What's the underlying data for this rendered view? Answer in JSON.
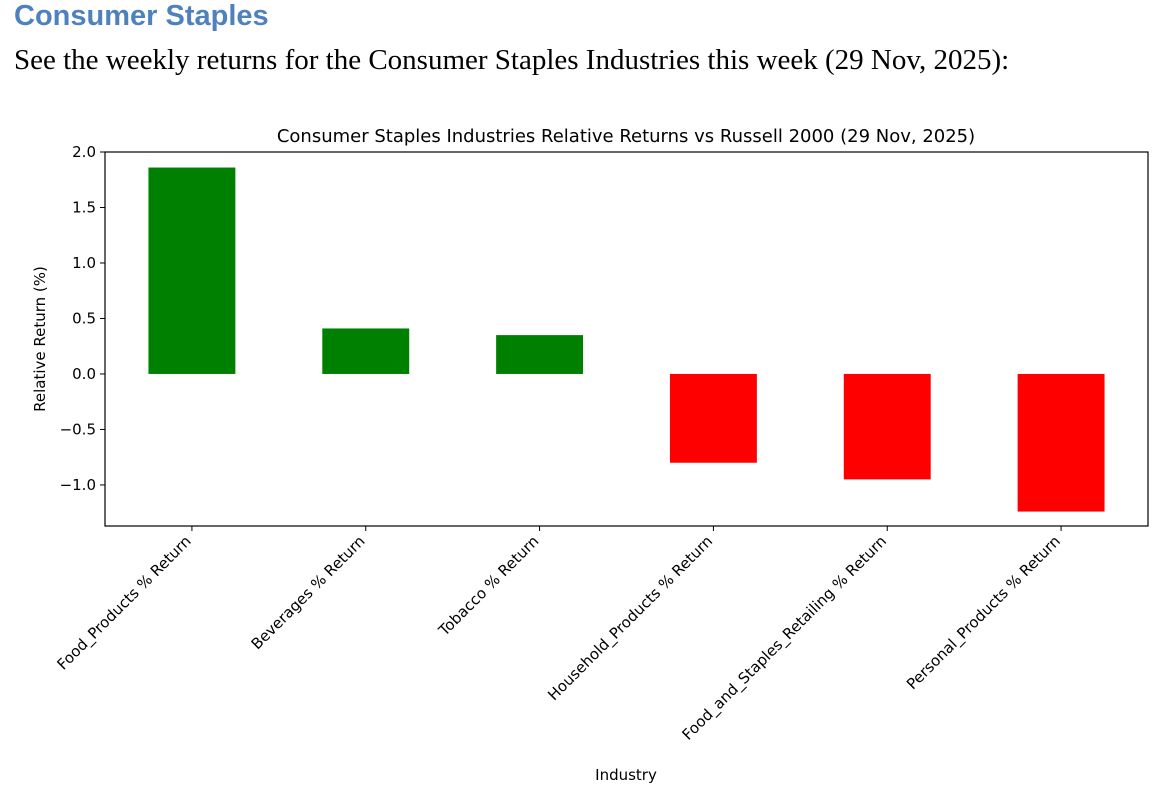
{
  "document": {
    "heading": "Consumer Staples",
    "intro": "See the weekly returns for the Consumer Staples Industries this week (29 Nov, 2025):"
  },
  "chart_data": {
    "type": "bar",
    "title": "Consumer Staples Industries Relative Returns vs Russell 2000 (29 Nov, 2025)",
    "xlabel": "Industry",
    "ylabel": "Relative Return (%)",
    "categories": [
      "Food_Products % Return",
      "Beverages % Return",
      "Tobacco % Return",
      "Household_Products % Return",
      "Food_and_Staples_Retailing % Return",
      "Personal_Products % Return"
    ],
    "values": [
      1.86,
      0.41,
      0.35,
      -0.8,
      -0.95,
      -1.24
    ],
    "colors": {
      "positive": "#008000",
      "negative": "#ff0000"
    },
    "ylim": [
      -1.37,
      2.0
    ],
    "yticks": [
      2.0,
      1.5,
      1.0,
      0.5,
      0.0,
      -0.5,
      -1.0
    ],
    "ytick_labels": [
      "2.0",
      "1.5",
      "1.0",
      "0.5",
      "0.0",
      "−0.5",
      "−1.0"
    ],
    "grid": false,
    "legend": "none"
  }
}
